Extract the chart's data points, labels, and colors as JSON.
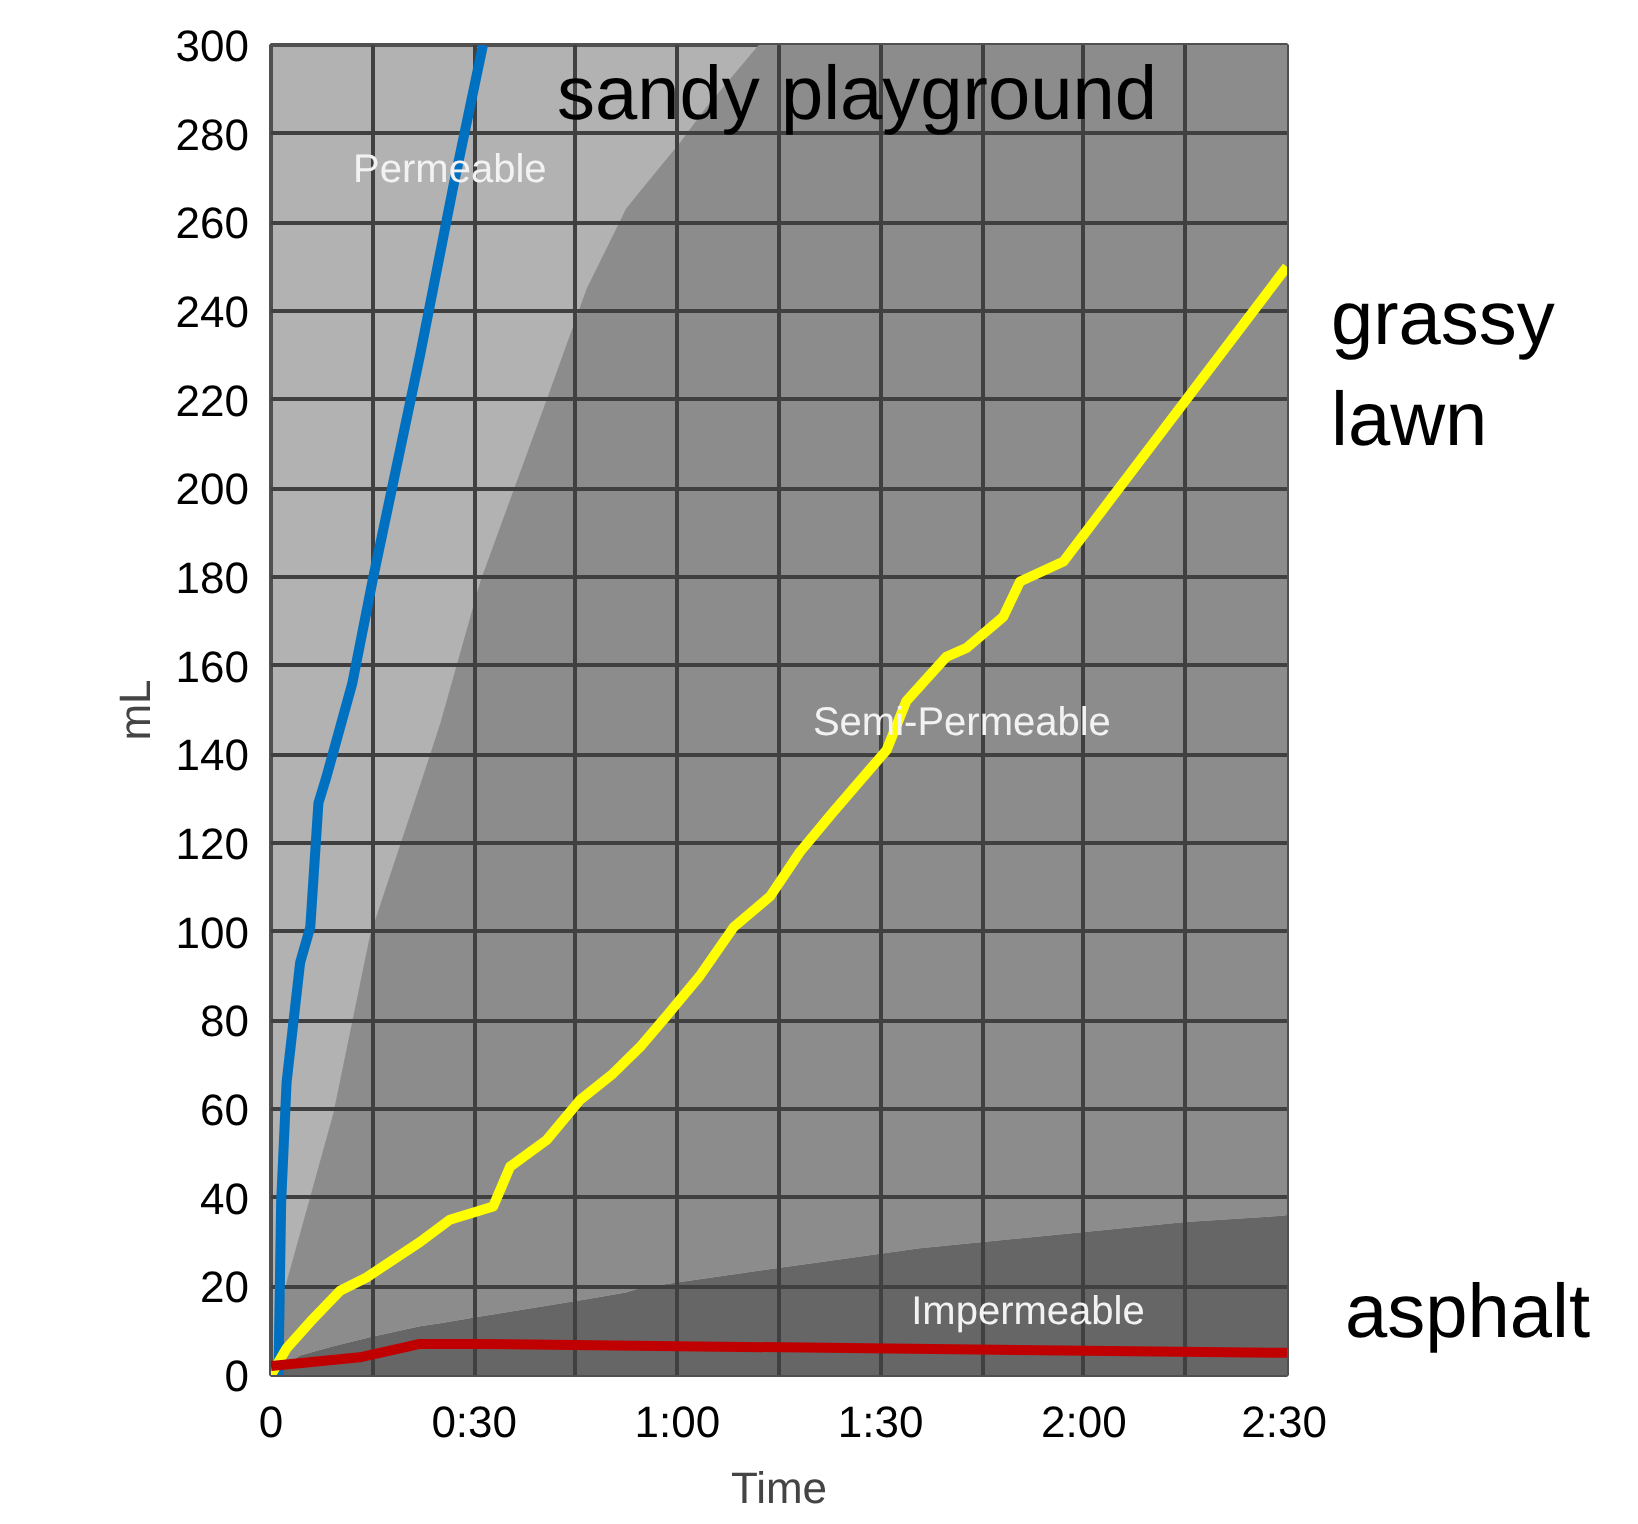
{
  "chart_data": {
    "type": "line",
    "xlabel": "Time",
    "ylabel": "mL",
    "xlim": [
      0,
      150
    ],
    "ylim": [
      0,
      300
    ],
    "xticks": [
      {
        "value": 0,
        "label": "0"
      },
      {
        "value": 15,
        "label": null
      },
      {
        "value": 30,
        "label": "0:30"
      },
      {
        "value": 45,
        "label": null
      },
      {
        "value": 60,
        "label": "1:00"
      },
      {
        "value": 75,
        "label": null
      },
      {
        "value": 90,
        "label": "1:30"
      },
      {
        "value": 105,
        "label": null
      },
      {
        "value": 120,
        "label": "2:00"
      },
      {
        "value": 135,
        "label": null
      },
      {
        "value": 150,
        "label": "2:30"
      }
    ],
    "yticks": [
      0,
      20,
      40,
      60,
      80,
      100,
      120,
      140,
      160,
      180,
      200,
      220,
      240,
      260,
      280,
      300
    ],
    "grid": true,
    "stacked": true,
    "series": [
      {
        "type": "area",
        "name": "Impermeable",
        "color": "#666666",
        "x": [
          0,
          2.3,
          4.3,
          9.2,
          14.6,
          22,
          25,
          30.9,
          40.7,
          46.6,
          52.4,
          54.5,
          60.4,
          64.3,
          72,
          95.8,
          135,
          150
        ],
        "values": [
          0,
          2.4,
          4.4,
          6.5,
          8.5,
          11,
          11.7,
          13.2,
          15.6,
          17.1,
          18.6,
          19.6,
          21,
          21.8,
          23.5,
          28.6,
          34.5,
          36
        ]
      },
      {
        "type": "area",
        "name": "Semi-Permeable",
        "color": "#8c8c8c",
        "x": [
          0,
          2.3,
          4.3,
          9.2,
          14.6,
          22,
          25,
          30.9,
          40.7,
          46.6,
          52.4,
          54.5,
          60.4,
          64.3,
          72,
          95.8,
          135,
          150
        ],
        "values": [
          0,
          18.6,
          27.6,
          52.5,
          90.5,
          122,
          135.3,
          165.8,
          204.4,
          227.9,
          244.4,
          247.4,
          257,
          264.2,
          276.5,
          271.4,
          265.5,
          264
        ]
      },
      {
        "name": "sandy playground",
        "color": "#0070c0",
        "x": [
          1.1,
          1.5,
          2.3,
          4.3,
          5.8,
          7,
          8.2,
          12,
          15.1,
          22,
          26.9,
          31.3
        ],
        "values": [
          0,
          39,
          66,
          93,
          101,
          129,
          135,
          156,
          180,
          230,
          268,
          300
        ]
      },
      {
        "name": "grassy lawn",
        "color": "#ffff00",
        "x": [
          0,
          2.3,
          5.8,
          10.2,
          14.1,
          22,
          26.4,
          32.8,
          35.3,
          40.7,
          45.6,
          50.5,
          54.5,
          58.4,
          63.3,
          68.3,
          73.7,
          78.1,
          83,
          90.9,
          93.8,
          99.7,
          102.7,
          108.1,
          110.6,
          117,
          150
        ],
        "values": [
          0,
          6,
          12,
          19,
          22,
          30,
          35,
          38,
          47,
          53,
          62,
          68,
          74,
          81,
          90,
          101,
          108,
          118,
          127,
          141,
          152,
          162,
          164,
          171,
          179,
          183.5,
          250
        ]
      },
      {
        "name": "asphalt",
        "color": "#c00000",
        "x": [
          0,
          13.1,
          22,
          30,
          150
        ],
        "values": [
          2,
          4,
          7,
          7,
          5
        ]
      }
    ],
    "annotations": [
      "Permeable"
    ]
  }
}
